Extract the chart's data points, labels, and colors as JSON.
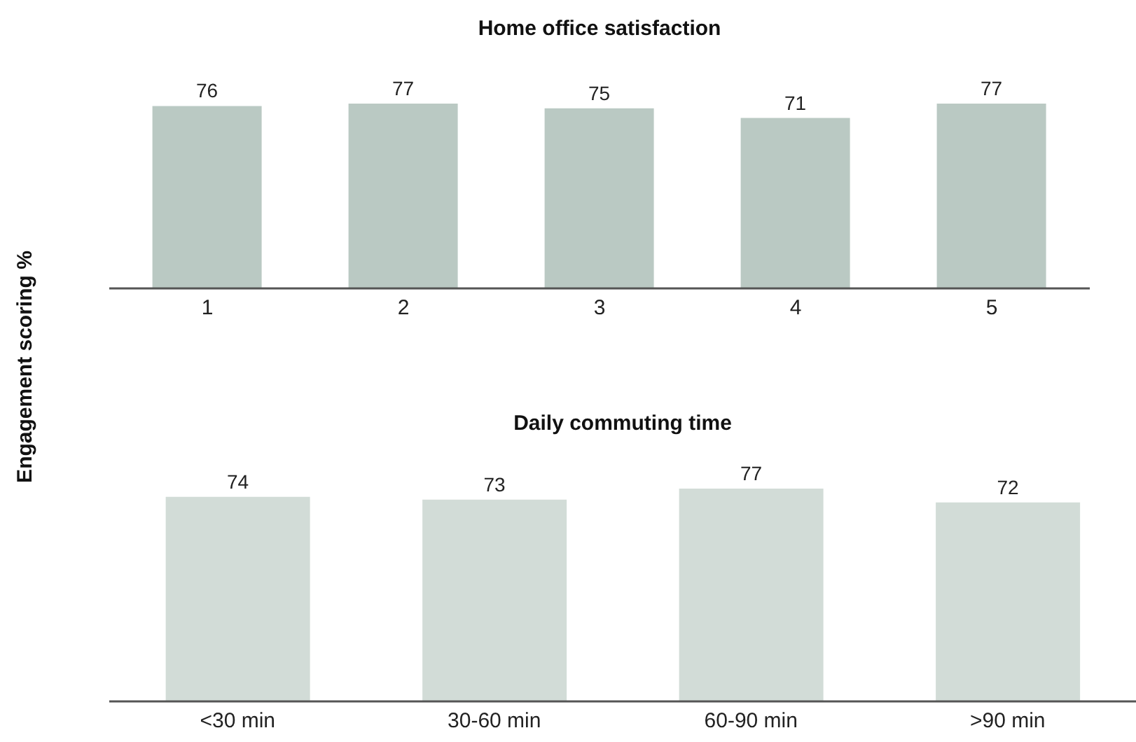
{
  "chart_data": [
    {
      "type": "bar",
      "title": "Home office satisfaction",
      "ylabel": "Engagement scoring %",
      "categories": [
        "1",
        "2",
        "3",
        "4",
        "5"
      ],
      "values": [
        76,
        77,
        75,
        71,
        77
      ],
      "color": "#bac9c3",
      "data_labels": true,
      "grid": false,
      "legend": false
    },
    {
      "type": "bar",
      "title": "Daily commuting time",
      "categories": [
        "<30 min",
        "30-60 min",
        "60-90 min",
        ">90 min"
      ],
      "values": [
        74,
        73,
        77,
        72
      ],
      "color": "#d2dcd7",
      "data_labels": true,
      "grid": false,
      "legend": false
    }
  ]
}
